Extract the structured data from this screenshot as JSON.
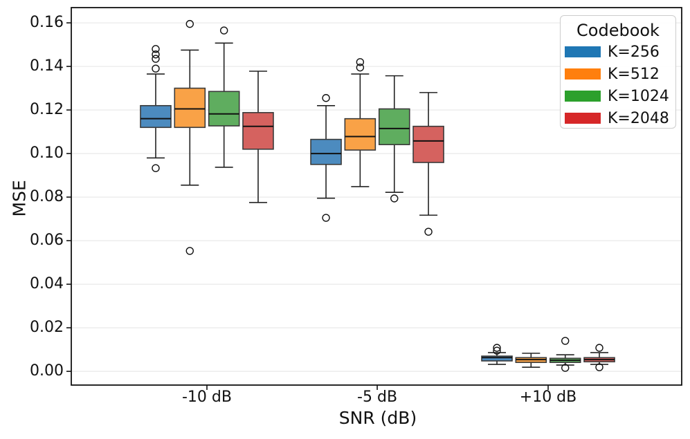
{
  "chart_data": {
    "type": "boxplot",
    "title": "",
    "xlabel": "SNR (dB)",
    "ylabel": "MSE",
    "categories": [
      "-10 dB",
      "-5 dB",
      "+10 dB"
    ],
    "ylim": [
      -0.0063,
      0.167
    ],
    "grid": "horizontal",
    "y_ticks": {
      "values": [
        0.0,
        0.02,
        0.04,
        0.06,
        0.08,
        0.1,
        0.12,
        0.14,
        0.16
      ],
      "labels": [
        "0.00",
        "0.02",
        "0.04",
        "0.06",
        "0.08",
        "0.10",
        "0.12",
        "0.14",
        "0.16"
      ]
    },
    "legend": {
      "title": "Codebook",
      "position": "upper-right"
    },
    "style": {
      "grid_color": "#e8e8e8",
      "spine_color": "#111111",
      "box_edge_color": "#3a3a3a",
      "median_color": "#111111",
      "whisker_color": "#222222",
      "outlier_color": "#111111"
    },
    "series": [
      {
        "name": "K=256",
        "box_color": "#4c8bbf",
        "legend_color": "#1f77b4",
        "boxes": [
          {
            "category": "-10 dB",
            "whisker_low": 0.098,
            "q1": 0.112,
            "median": 0.116,
            "q3": 0.122,
            "whisker_high": 0.1365,
            "outliers": [
              0.148,
              0.1455,
              0.1435,
              0.139,
              0.0933
            ]
          },
          {
            "category": "-5 dB",
            "whisker_low": 0.0795,
            "q1": 0.095,
            "median": 0.1,
            "q3": 0.1065,
            "whisker_high": 0.122,
            "outliers": [
              0.1255,
              0.0705
            ]
          },
          {
            "category": "+10 dB",
            "whisker_low": 0.0032,
            "q1": 0.0048,
            "median": 0.0063,
            "q3": 0.007,
            "whisker_high": 0.0086,
            "outliers": [
              0.0108,
              0.0095
            ]
          }
        ]
      },
      {
        "name": "K=512",
        "box_color": "#f9a247",
        "legend_color": "#ff7f0e",
        "boxes": [
          {
            "category": "-10 dB",
            "whisker_low": 0.0855,
            "q1": 0.112,
            "median": 0.1205,
            "q3": 0.13,
            "whisker_high": 0.1475,
            "outliers": [
              0.1595,
              0.0553
            ]
          },
          {
            "category": "-5 dB",
            "whisker_low": 0.0848,
            "q1": 0.1016,
            "median": 0.1078,
            "q3": 0.116,
            "whisker_high": 0.1365,
            "outliers": [
              0.142,
              0.1395
            ]
          },
          {
            "category": "+10 dB",
            "whisker_low": 0.0019,
            "q1": 0.0041,
            "median": 0.0054,
            "q3": 0.0063,
            "whisker_high": 0.0083,
            "outliers": []
          }
        ]
      },
      {
        "name": "K=1024",
        "box_color": "#5fad5f",
        "legend_color": "#2ca02c",
        "boxes": [
          {
            "category": "-10 dB",
            "whisker_low": 0.0937,
            "q1": 0.1127,
            "median": 0.1182,
            "q3": 0.1285,
            "whisker_high": 0.1507,
            "outliers": [
              0.1565
            ]
          },
          {
            "category": "-5 dB",
            "whisker_low": 0.0822,
            "q1": 0.1041,
            "median": 0.1115,
            "q3": 0.1205,
            "whisker_high": 0.1357,
            "outliers": [
              0.0794
            ]
          },
          {
            "category": "+10 dB",
            "whisker_low": 0.0029,
            "q1": 0.0041,
            "median": 0.0051,
            "q3": 0.006,
            "whisker_high": 0.0076,
            "outliers": [
              0.014,
              0.0016
            ]
          }
        ]
      },
      {
        "name": "K=2048",
        "box_color": "#d5625f",
        "legend_color": "#d62728",
        "boxes": [
          {
            "category": "-10 dB",
            "whisker_low": 0.0775,
            "q1": 0.102,
            "median": 0.1125,
            "q3": 0.1188,
            "whisker_high": 0.1378,
            "outliers": []
          },
          {
            "category": "-5 dB",
            "whisker_low": 0.0717,
            "q1": 0.0959,
            "median": 0.1058,
            "q3": 0.1125,
            "whisker_high": 0.128,
            "outliers": [
              0.0641
            ]
          },
          {
            "category": "+10 dB",
            "whisker_low": 0.0032,
            "q1": 0.0044,
            "median": 0.0054,
            "q3": 0.0063,
            "whisker_high": 0.0086,
            "outliers": [
              0.0108,
              0.0019
            ]
          }
        ]
      }
    ]
  }
}
